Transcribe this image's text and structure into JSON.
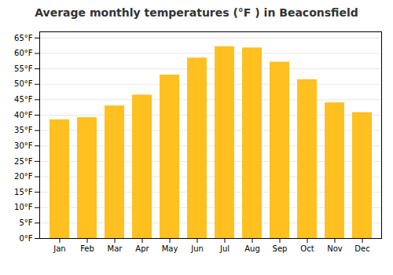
{
  "chart_data": {
    "type": "bar",
    "title": "Average monthly temperatures (°F ) in Beaconsfield",
    "categories": [
      "Jan",
      "Feb",
      "Mar",
      "Apr",
      "May",
      "Jun",
      "Jul",
      "Aug",
      "Sep",
      "Oct",
      "Nov",
      "Dec"
    ],
    "values": [
      38.5,
      39.2,
      43.0,
      46.5,
      53.0,
      58.5,
      62.2,
      61.8,
      57.2,
      51.5,
      44.0,
      40.8
    ],
    "color": "#FFC020",
    "ylim": [
      0,
      67
    ],
    "yticks": [
      {
        "value": 0,
        "label": "0°F"
      },
      {
        "value": 5,
        "label": "5°F"
      },
      {
        "value": 10,
        "label": "10°F"
      },
      {
        "value": 15,
        "label": "15°F"
      },
      {
        "value": 20,
        "label": "20°F"
      },
      {
        "value": 25,
        "label": "25°F"
      },
      {
        "value": 30,
        "label": "30°F"
      },
      {
        "value": 35,
        "label": "35°F"
      },
      {
        "value": 40,
        "label": "40°F"
      },
      {
        "value": 45,
        "label": "45°F"
      },
      {
        "value": 50,
        "label": "50°F"
      },
      {
        "value": 55,
        "label": "55°F"
      },
      {
        "value": 60,
        "label": "60°F"
      },
      {
        "value": 65,
        "label": "65°F"
      }
    ],
    "grid": true
  }
}
